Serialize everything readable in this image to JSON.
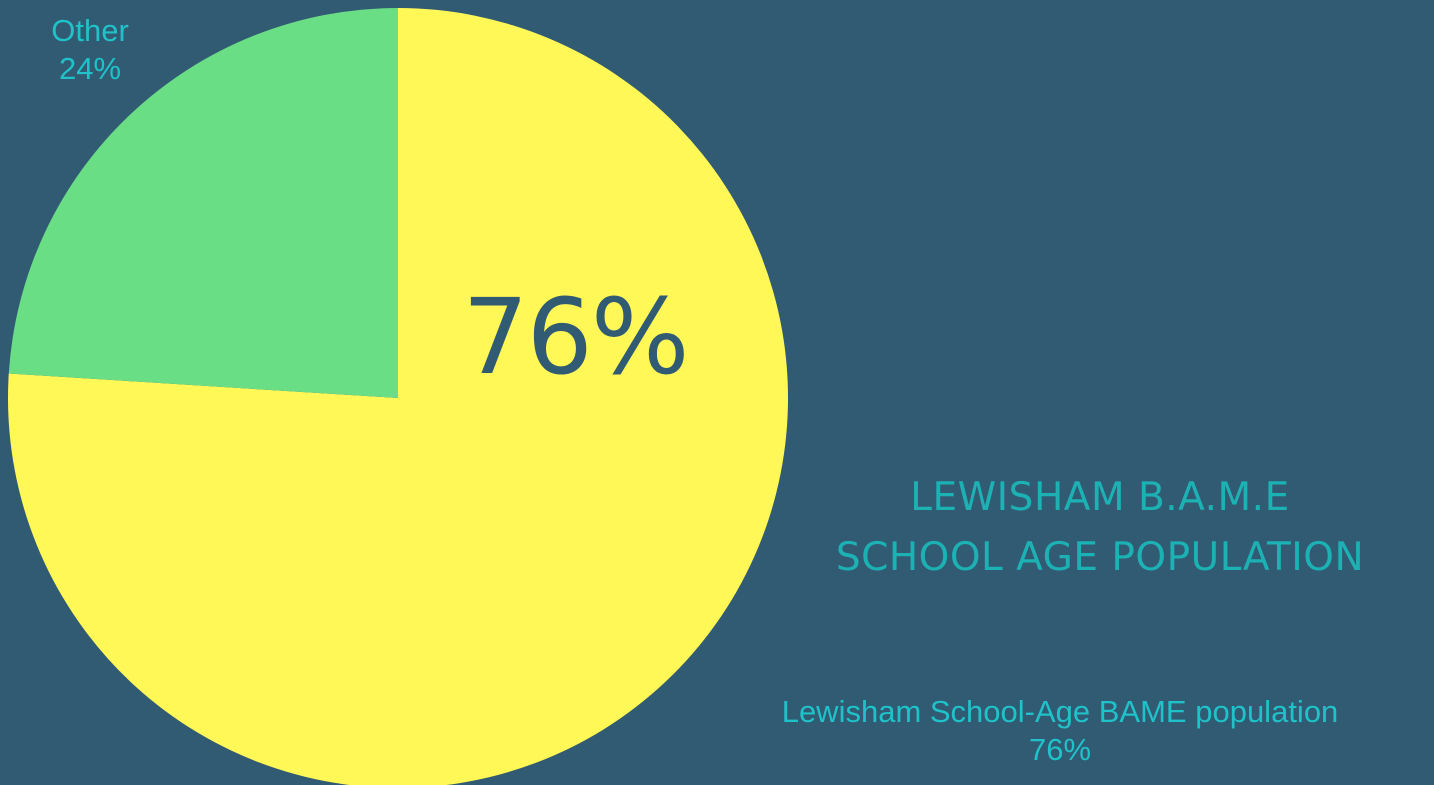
{
  "colors": {
    "background": "#315a73",
    "bame_slice": "#fff857",
    "other_slice": "#6ade85",
    "label_text": "#1fc2c9",
    "title_text": "#1cb2b4",
    "big_percent_text": "#315a73"
  },
  "title": {
    "line1": "LEWISHAM B.A.M.E",
    "line2": "SCHOOL AGE POPULATION"
  },
  "big_percent": "76%",
  "labels": {
    "other_name": "Other",
    "other_value": "24%",
    "bame_name": "Lewisham School-Age BAME population",
    "bame_value": "76%"
  },
  "chart_data": {
    "type": "pie",
    "title": "LEWISHAM B.A.M.E SCHOOL AGE POPULATION",
    "slices": [
      {
        "label": "Lewisham School-Age BAME population",
        "value": 76,
        "color": "#fff857"
      },
      {
        "label": "Other",
        "value": 24,
        "color": "#6ade85"
      }
    ],
    "start": "top",
    "direction": "clockwise",
    "legend": "none"
  }
}
